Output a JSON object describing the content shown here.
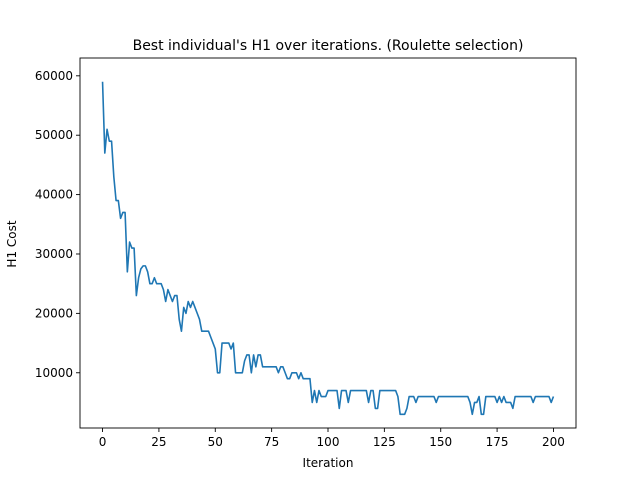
{
  "chart_data": {
    "type": "line",
    "title": "Best individual's H1 over iterations. (Roulette selection)",
    "xlabel": "Iteration",
    "ylabel": "H1 Cost",
    "xlim": [
      -10,
      210
    ],
    "ylim": [
      700,
      63000
    ],
    "xticks": [
      0,
      25,
      50,
      75,
      100,
      125,
      150,
      175,
      200
    ],
    "yticks": [
      10000,
      20000,
      30000,
      40000,
      50000,
      60000
    ],
    "grid": false,
    "legend": "none",
    "line_color": "#1f77b4",
    "series": [
      {
        "x": [
          0,
          1,
          2,
          3,
          4,
          5,
          6,
          7,
          8,
          9,
          10,
          11,
          12,
          13,
          14,
          15,
          16,
          17,
          18,
          19,
          20,
          21,
          22,
          23,
          24,
          25,
          26,
          27,
          28,
          29,
          30,
          31,
          32,
          33,
          34,
          35,
          36,
          37,
          38,
          39,
          40,
          41,
          42,
          43,
          44,
          45,
          46,
          47,
          48,
          49,
          50,
          51,
          52,
          53,
          54,
          55,
          56,
          57,
          58,
          59,
          60,
          61,
          62,
          63,
          64,
          65,
          66,
          67,
          68,
          69,
          70,
          71,
          72,
          73,
          74,
          75,
          76,
          77,
          78,
          79,
          80,
          81,
          82,
          83,
          84,
          85,
          86,
          87,
          88,
          89,
          90,
          91,
          92,
          93,
          94,
          95,
          96,
          97,
          98,
          99,
          100,
          101,
          102,
          103,
          104,
          105,
          106,
          107,
          108,
          109,
          110,
          111,
          112,
          113,
          114,
          115,
          116,
          117,
          118,
          119,
          120,
          121,
          122,
          123,
          124,
          125,
          126,
          127,
          128,
          129,
          130,
          131,
          132,
          133,
          134,
          135,
          136,
          137,
          138,
          139,
          140,
          141,
          142,
          143,
          144,
          145,
          146,
          147,
          148,
          149,
          150,
          151,
          152,
          153,
          154,
          155,
          156,
          157,
          158,
          159,
          160,
          161,
          162,
          163,
          164,
          165,
          166,
          167,
          168,
          169,
          170,
          171,
          172,
          173,
          174,
          175,
          176,
          177,
          178,
          179,
          180,
          181,
          182,
          183,
          184,
          185,
          186,
          187,
          188,
          189,
          190,
          191,
          192,
          193,
          194,
          195,
          196,
          197,
          198,
          199,
          200
        ],
        "values": [
          59000,
          47000,
          51000,
          49000,
          49000,
          43000,
          39000,
          39000,
          36000,
          37000,
          37000,
          27000,
          32000,
          31000,
          31000,
          23000,
          26000,
          27500,
          28000,
          28000,
          27000,
          25000,
          25000,
          26000,
          25000,
          25000,
          25000,
          24000,
          22000,
          24000,
          23000,
          22000,
          23000,
          23000,
          19000,
          17000,
          21000,
          20000,
          22000,
          21000,
          22000,
          21000,
          20000,
          19000,
          17000,
          17000,
          17000,
          17000,
          16000,
          15000,
          14000,
          10000,
          10000,
          15000,
          15000,
          15000,
          15000,
          14000,
          15000,
          10000,
          10000,
          10000,
          10000,
          12000,
          13000,
          13000,
          10000,
          13000,
          11000,
          13000,
          13000,
          11000,
          11000,
          11000,
          11000,
          11000,
          11000,
          11000,
          10000,
          11000,
          11000,
          10000,
          9000,
          9000,
          10000,
          10000,
          10000,
          9000,
          10000,
          9000,
          9000,
          9000,
          9000,
          5000,
          7000,
          5000,
          7000,
          6000,
          6000,
          6000,
          7000,
          7000,
          7000,
          7000,
          7000,
          4000,
          7000,
          7000,
          7000,
          5000,
          7000,
          7000,
          7000,
          7000,
          7000,
          7000,
          7000,
          7000,
          5000,
          7000,
          7000,
          4000,
          4000,
          7000,
          7000,
          7000,
          7000,
          7000,
          7000,
          7000,
          7000,
          6000,
          3000,
          3000,
          3000,
          4000,
          6000,
          6000,
          6000,
          5000,
          6000,
          6000,
          6000,
          6000,
          6000,
          6000,
          6000,
          6000,
          5000,
          6000,
          6000,
          6000,
          6000,
          6000,
          6000,
          6000,
          6000,
          6000,
          6000,
          6000,
          6000,
          6000,
          6000,
          5000,
          3000,
          5000,
          5000,
          6000,
          3000,
          3000,
          6000,
          6000,
          6000,
          6000,
          6000,
          5000,
          6000,
          5000,
          6000,
          5000,
          5000,
          5000,
          4000,
          6000,
          6000,
          6000,
          6000,
          6000,
          6000,
          6000,
          6000,
          5000,
          6000,
          6000,
          6000,
          6000,
          6000,
          6000,
          6000,
          5000,
          6000
        ]
      }
    ]
  }
}
